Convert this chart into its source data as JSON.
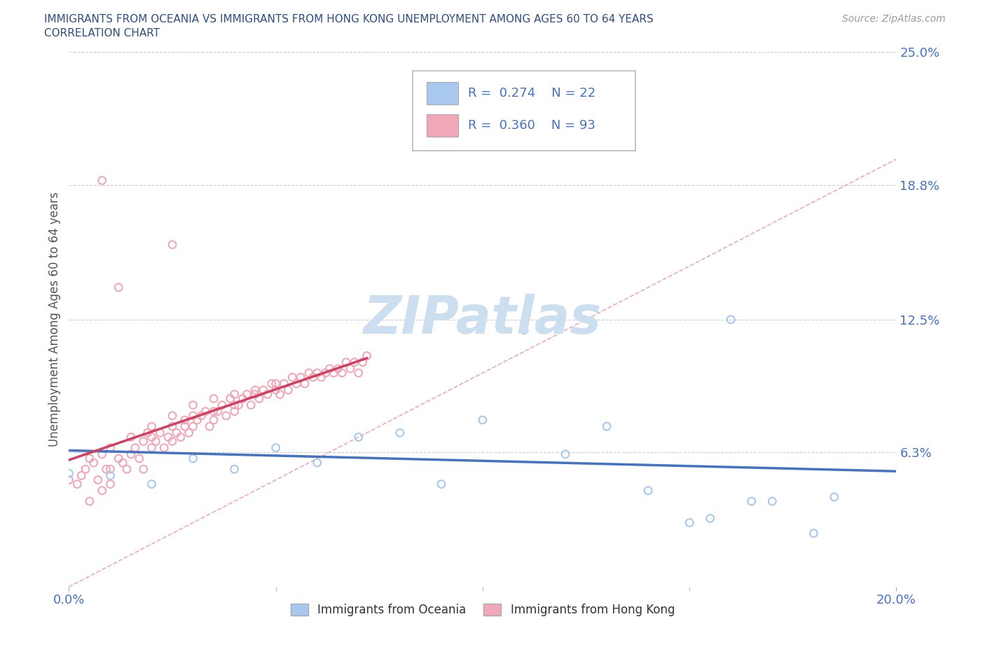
{
  "title_line1": "IMMIGRANTS FROM OCEANIA VS IMMIGRANTS FROM HONG KONG UNEMPLOYMENT AMONG AGES 60 TO 64 YEARS",
  "title_line2": "CORRELATION CHART",
  "source_text": "Source: ZipAtlas.com",
  "ylabel": "Unemployment Among Ages 60 to 64 years",
  "xlim": [
    0.0,
    0.2
  ],
  "ylim": [
    0.0,
    0.25
  ],
  "xtick_labels": [
    "0.0%",
    "20.0%"
  ],
  "ytick_labels": [
    "6.3%",
    "12.5%",
    "18.8%",
    "25.0%"
  ],
  "ytick_values": [
    0.063,
    0.125,
    0.188,
    0.25
  ],
  "xtick_values": [
    0.0,
    0.2
  ],
  "grid_color": "#cccccc",
  "background_color": "#ffffff",
  "watermark_text": "ZIPatlas",
  "watermark_color": "#ccdff0",
  "color_oceania": "#a8c8f0",
  "color_hk": "#f0a8b8",
  "trendline_color_oceania": "#4472c4",
  "trendline_color_hk": "#d04060",
  "diagonal_color": "#f0a8b8",
  "title_color": "#2f4f7f",
  "axis_label_color": "#555555",
  "tick_color": "#4472c4",
  "legend_box_color": "#dddddd",
  "oceania_x": [
    0.0,
    0.01,
    0.02,
    0.03,
    0.04,
    0.05,
    0.06,
    0.07,
    0.08,
    0.09,
    0.1,
    0.11,
    0.12,
    0.13,
    0.14,
    0.15,
    0.155,
    0.16,
    0.165,
    0.17,
    0.18,
    0.185
  ],
  "oceania_y": [
    0.053,
    0.052,
    0.048,
    0.06,
    0.055,
    0.065,
    0.058,
    0.07,
    0.072,
    0.048,
    0.078,
    0.12,
    0.062,
    0.075,
    0.045,
    0.03,
    0.032,
    0.125,
    0.04,
    0.04,
    0.025,
    0.042
  ],
  "hk_x": [
    0.0,
    0.002,
    0.003,
    0.004,
    0.005,
    0.005,
    0.006,
    0.007,
    0.008,
    0.008,
    0.009,
    0.01,
    0.01,
    0.01,
    0.012,
    0.013,
    0.014,
    0.015,
    0.015,
    0.016,
    0.017,
    0.018,
    0.018,
    0.019,
    0.02,
    0.02,
    0.02,
    0.021,
    0.022,
    0.023,
    0.024,
    0.025,
    0.025,
    0.025,
    0.026,
    0.027,
    0.028,
    0.028,
    0.029,
    0.03,
    0.03,
    0.03,
    0.031,
    0.032,
    0.033,
    0.034,
    0.035,
    0.035,
    0.035,
    0.036,
    0.037,
    0.038,
    0.039,
    0.04,
    0.04,
    0.04,
    0.041,
    0.042,
    0.043,
    0.044,
    0.045,
    0.045,
    0.046,
    0.047,
    0.048,
    0.049,
    0.05,
    0.05,
    0.051,
    0.052,
    0.053,
    0.054,
    0.055,
    0.056,
    0.057,
    0.058,
    0.059,
    0.06,
    0.061,
    0.062,
    0.063,
    0.064,
    0.065,
    0.066,
    0.067,
    0.068,
    0.069,
    0.07,
    0.071,
    0.072,
    0.008,
    0.012,
    0.025
  ],
  "hk_y": [
    0.05,
    0.048,
    0.052,
    0.055,
    0.06,
    0.04,
    0.058,
    0.05,
    0.045,
    0.062,
    0.055,
    0.048,
    0.055,
    0.065,
    0.06,
    0.058,
    0.055,
    0.062,
    0.07,
    0.065,
    0.06,
    0.068,
    0.055,
    0.072,
    0.065,
    0.07,
    0.075,
    0.068,
    0.072,
    0.065,
    0.07,
    0.068,
    0.075,
    0.08,
    0.072,
    0.07,
    0.075,
    0.078,
    0.072,
    0.075,
    0.08,
    0.085,
    0.078,
    0.08,
    0.082,
    0.075,
    0.078,
    0.082,
    0.088,
    0.082,
    0.085,
    0.08,
    0.088,
    0.082,
    0.085,
    0.09,
    0.085,
    0.088,
    0.09,
    0.085,
    0.09,
    0.092,
    0.088,
    0.092,
    0.09,
    0.095,
    0.092,
    0.095,
    0.09,
    0.095,
    0.092,
    0.098,
    0.095,
    0.098,
    0.095,
    0.1,
    0.098,
    0.1,
    0.098,
    0.1,
    0.102,
    0.1,
    0.102,
    0.1,
    0.105,
    0.102,
    0.105,
    0.1,
    0.105,
    0.108,
    0.19,
    0.14,
    0.16
  ]
}
